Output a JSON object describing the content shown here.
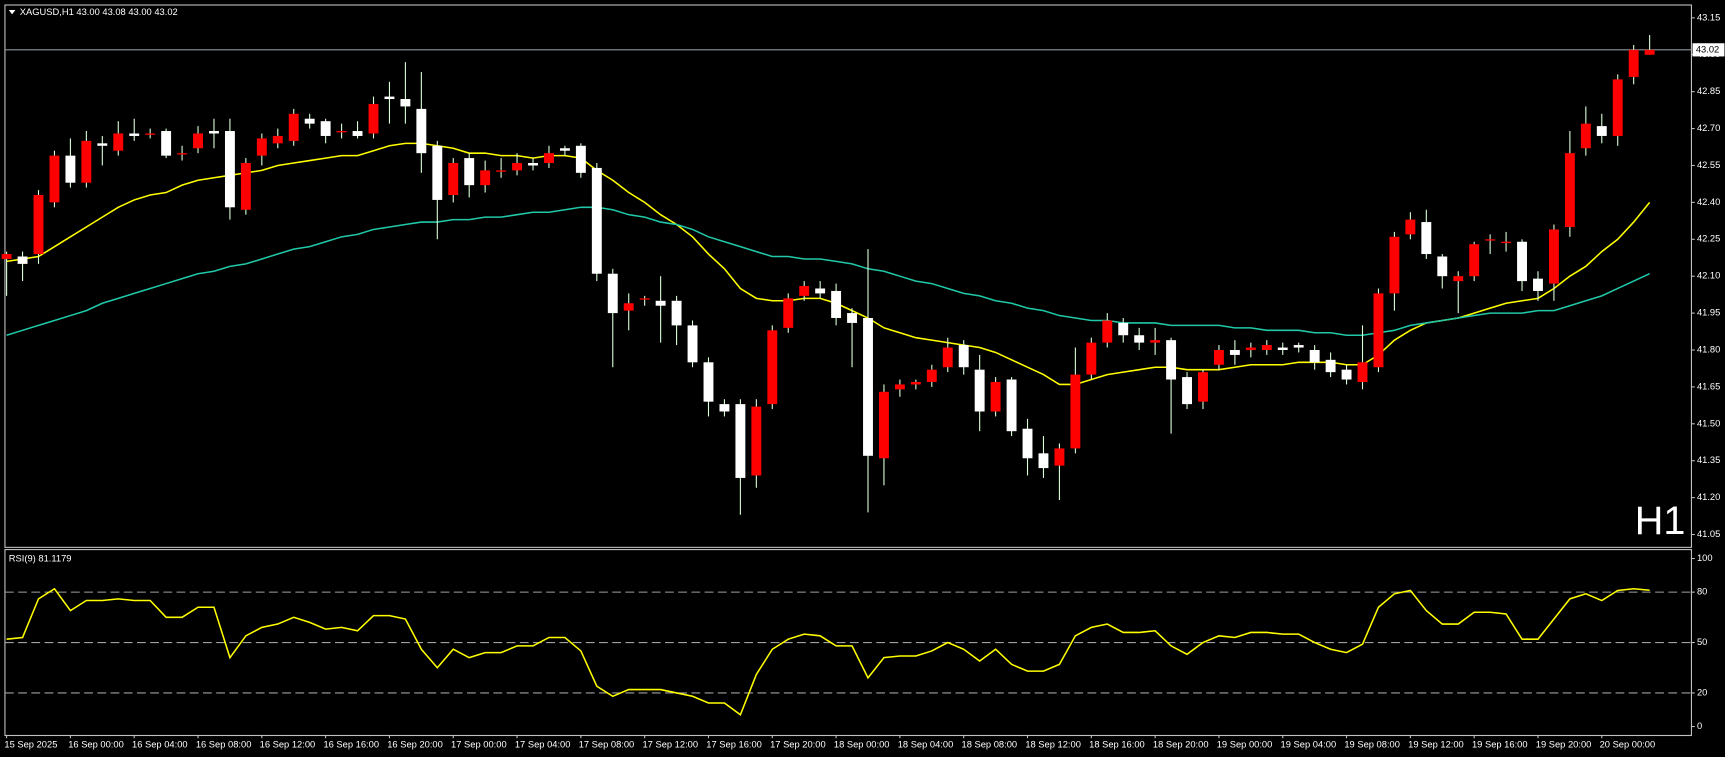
{
  "chart_data": [
    {
      "type": "candlestick",
      "title": "XAGUSD,H1  43.00 43.08 43.00 43.02",
      "annotation": "H1",
      "annotation_color": "#e00000",
      "up_color": "#ff0000",
      "down_color": "#ffffff",
      "wick_color": "#d8ffd8",
      "open": [
        42.17,
        42.18,
        42.19,
        42.4,
        42.59,
        42.48,
        42.64,
        42.61,
        42.68,
        42.68,
        42.69,
        42.6,
        42.62,
        42.69,
        42.69,
        42.37,
        42.59,
        42.64,
        42.65,
        42.74,
        42.73,
        42.69,
        42.69,
        42.68,
        42.83,
        42.82,
        42.78,
        42.63,
        42.43,
        42.58,
        42.47,
        42.53,
        42.53,
        42.56,
        42.56,
        42.62,
        42.63,
        42.54,
        42.11,
        41.96,
        42.01,
        42.0,
        42.0,
        41.9,
        41.75,
        41.58,
        41.58,
        41.29,
        41.58,
        41.89,
        42.02,
        42.05,
        42.04,
        41.95,
        41.93,
        41.36,
        41.64,
        41.66,
        41.67,
        41.73,
        41.82,
        41.72,
        41.55,
        41.68,
        41.48,
        41.38,
        41.33,
        41.4,
        41.7,
        41.83,
        41.91,
        41.86,
        41.83,
        41.84,
        41.69,
        41.59,
        41.74,
        41.8,
        41.8,
        41.8,
        41.81,
        41.82,
        41.8,
        41.76,
        41.72,
        41.67,
        41.73,
        42.03,
        42.27,
        42.32,
        42.18,
        42.08,
        42.1,
        42.25,
        42.24,
        42.24,
        42.09,
        42.07,
        42.3,
        42.62,
        42.71,
        42.67,
        42.91,
        43.0
      ],
      "high": [
        42.2,
        42.2,
        42.45,
        42.61,
        42.66,
        42.69,
        42.67,
        42.73,
        42.74,
        42.7,
        42.7,
        42.63,
        42.71,
        42.74,
        42.74,
        42.58,
        42.68,
        42.7,
        42.78,
        42.76,
        42.74,
        42.72,
        42.73,
        42.83,
        42.89,
        42.97,
        42.93,
        42.65,
        42.58,
        42.6,
        42.57,
        42.58,
        42.6,
        42.58,
        42.63,
        42.63,
        42.64,
        42.56,
        42.13,
        42.03,
        42.02,
        42.1,
        42.02,
        41.92,
        41.77,
        41.6,
        41.6,
        41.6,
        41.9,
        42.03,
        42.08,
        42.08,
        42.07,
        41.97,
        42.21,
        41.66,
        41.68,
        41.68,
        41.74,
        41.85,
        41.84,
        41.78,
        41.69,
        41.69,
        41.52,
        41.45,
        41.42,
        41.81,
        41.85,
        41.95,
        41.93,
        41.89,
        41.89,
        41.85,
        41.71,
        41.72,
        41.82,
        41.84,
        41.83,
        41.84,
        41.83,
        41.83,
        41.82,
        41.79,
        41.74,
        41.9,
        42.05,
        42.28,
        42.36,
        42.37,
        42.19,
        42.12,
        42.24,
        42.27,
        42.28,
        42.25,
        42.12,
        42.31,
        42.69,
        42.79,
        42.76,
        42.92,
        43.04,
        43.08
      ],
      "low": [
        42.02,
        42.08,
        42.15,
        42.38,
        42.46,
        42.46,
        42.55,
        42.59,
        42.65,
        42.66,
        42.58,
        42.57,
        42.6,
        42.62,
        42.33,
        42.35,
        42.55,
        42.62,
        42.63,
        42.7,
        42.64,
        42.66,
        42.66,
        42.66,
        42.72,
        42.72,
        42.52,
        42.25,
        42.4,
        42.42,
        42.44,
        42.5,
        42.51,
        42.53,
        42.54,
        42.59,
        42.5,
        42.08,
        41.73,
        41.88,
        41.98,
        41.83,
        41.82,
        41.73,
        41.53,
        41.53,
        41.13,
        41.24,
        41.56,
        41.87,
        42.0,
        42.01,
        41.9,
        41.73,
        41.14,
        41.25,
        41.61,
        41.64,
        41.65,
        41.71,
        41.7,
        41.47,
        41.53,
        41.45,
        41.29,
        41.28,
        41.19,
        41.38,
        41.68,
        41.81,
        41.83,
        41.8,
        41.78,
        41.46,
        41.56,
        41.56,
        41.72,
        41.74,
        41.77,
        41.78,
        41.78,
        41.79,
        41.72,
        41.69,
        41.66,
        41.64,
        41.71,
        41.96,
        42.25,
        42.17,
        42.05,
        41.95,
        42.08,
        42.19,
        42.2,
        42.04,
        42.0,
        42.0,
        42.26,
        42.59,
        42.64,
        42.63,
        42.88,
        43.0
      ],
      "close": [
        42.19,
        42.15,
        42.43,
        42.59,
        42.48,
        42.65,
        42.63,
        42.68,
        42.67,
        42.68,
        42.59,
        42.6,
        42.68,
        42.68,
        42.38,
        42.56,
        42.66,
        42.67,
        42.76,
        42.72,
        42.67,
        42.69,
        42.67,
        42.8,
        42.82,
        42.79,
        42.6,
        42.41,
        42.56,
        42.47,
        42.53,
        42.53,
        42.56,
        42.55,
        42.6,
        42.61,
        42.52,
        42.11,
        41.95,
        41.99,
        42.01,
        41.98,
        41.9,
        41.75,
        41.59,
        41.55,
        41.28,
        41.57,
        41.88,
        42.01,
        42.06,
        42.03,
        41.93,
        41.91,
        41.37,
        41.63,
        41.66,
        41.67,
        41.72,
        41.81,
        41.73,
        41.55,
        41.67,
        41.47,
        41.36,
        41.32,
        41.4,
        41.7,
        41.83,
        41.92,
        41.86,
        41.83,
        41.84,
        41.68,
        41.58,
        41.71,
        41.8,
        41.78,
        41.81,
        41.82,
        41.8,
        41.81,
        41.75,
        41.71,
        41.68,
        41.75,
        42.03,
        42.26,
        42.33,
        42.19,
        42.1,
        42.1,
        42.23,
        42.25,
        42.24,
        42.08,
        42.04,
        42.29,
        42.6,
        42.72,
        42.67,
        42.9,
        43.02,
        43.02
      ],
      "series": [
        {
          "color": "#ffff00",
          "values": [
            42.16,
            42.17,
            42.18,
            42.22,
            42.26,
            42.3,
            42.34,
            42.38,
            42.41,
            42.43,
            42.44,
            42.47,
            42.49,
            42.5,
            42.51,
            42.52,
            42.53,
            42.55,
            42.56,
            42.57,
            42.58,
            42.59,
            42.59,
            42.61,
            42.63,
            42.64,
            42.64,
            42.63,
            42.62,
            42.6,
            42.6,
            42.59,
            42.59,
            42.58,
            42.59,
            42.59,
            42.58,
            42.53,
            42.49,
            42.44,
            42.4,
            42.35,
            42.31,
            42.26,
            42.19,
            42.13,
            42.05,
            42.01,
            42.0,
            42.0,
            42.01,
            42.01,
            41.99,
            41.96,
            41.93,
            41.89,
            41.87,
            41.85,
            41.84,
            41.83,
            41.82,
            41.81,
            41.79,
            41.76,
            41.73,
            41.7,
            41.66,
            41.66,
            41.68,
            41.7,
            41.71,
            41.72,
            41.73,
            41.73,
            41.72,
            41.72,
            41.72,
            41.73,
            41.74,
            41.74,
            41.74,
            41.75,
            41.75,
            41.75,
            41.74,
            41.74,
            41.78,
            41.84,
            41.88,
            41.91,
            41.92,
            41.93,
            41.95,
            41.97,
            41.99,
            42.0,
            42.01,
            42.05,
            42.1,
            42.14,
            42.2,
            42.25,
            42.32,
            42.4
          ]
        },
        {
          "color": "#20c8a8",
          "values": [
            41.86,
            41.88,
            41.9,
            41.92,
            41.94,
            41.96,
            41.99,
            42.01,
            42.03,
            42.05,
            42.07,
            42.09,
            42.11,
            42.12,
            42.14,
            42.15,
            42.17,
            42.19,
            42.21,
            42.22,
            42.24,
            42.26,
            42.27,
            42.29,
            42.3,
            42.31,
            42.32,
            42.32,
            42.33,
            42.33,
            42.34,
            42.34,
            42.35,
            42.36,
            42.36,
            42.37,
            42.38,
            42.38,
            42.37,
            42.35,
            42.34,
            42.32,
            42.31,
            42.29,
            42.26,
            42.24,
            42.22,
            42.2,
            42.18,
            42.18,
            42.17,
            42.17,
            42.16,
            42.15,
            42.13,
            42.12,
            42.1,
            42.08,
            42.07,
            42.05,
            42.03,
            42.02,
            42.0,
            41.99,
            41.97,
            41.96,
            41.94,
            41.93,
            41.92,
            41.92,
            41.91,
            41.91,
            41.91,
            41.9,
            41.9,
            41.9,
            41.9,
            41.89,
            41.89,
            41.88,
            41.88,
            41.88,
            41.87,
            41.87,
            41.86,
            41.86,
            41.87,
            41.88,
            41.9,
            41.91,
            41.92,
            41.93,
            41.94,
            41.95,
            41.95,
            41.95,
            41.96,
            41.96,
            41.98,
            42.0,
            42.02,
            42.05,
            42.08,
            42.11
          ]
        }
      ],
      "current_price": 43.02,
      "price_line_color": "#8c96a0",
      "ylim": [
        41.0,
        43.2
      ],
      "yticks": [
        41.05,
        {
          "value": 41.2,
          "label": "41.20"
        },
        41.35,
        {
          "value": 41.5,
          "label": "41.50"
        },
        41.65,
        {
          "value": 41.8,
          "label": "41.80"
        },
        41.95,
        {
          "value": 42.1,
          "label": "42.10"
        },
        42.25,
        {
          "value": 42.4,
          "label": "42.40"
        },
        42.55,
        {
          "value": 42.7,
          "label": "42.70"
        },
        42.85,
        {
          "value": 43.0,
          "label": "43.00"
        },
        43.15
      ]
    },
    {
      "type": "line",
      "title": "RSI(9) 81.1179",
      "color": "#ffff00",
      "values": [
        52,
        53,
        76,
        82,
        69,
        75,
        75,
        76,
        75,
        75,
        65,
        65,
        71,
        71,
        41,
        54,
        59,
        61,
        65,
        62,
        58,
        59,
        57,
        66,
        66,
        64,
        46,
        35,
        46,
        41,
        44,
        44,
        48,
        48,
        53,
        53,
        45,
        24,
        18,
        22,
        22,
        22,
        20,
        18,
        14,
        14,
        7,
        31,
        46,
        52,
        55,
        54,
        48,
        48,
        29,
        41,
        42,
        42,
        45,
        50,
        46,
        39,
        46,
        37,
        33,
        33,
        37,
        54,
        59,
        61,
        56,
        56,
        57,
        48,
        43,
        50,
        54,
        53,
        56,
        56,
        55,
        55,
        50,
        46,
        44,
        49,
        71,
        79,
        81,
        69,
        61,
        61,
        68,
        68,
        67,
        52,
        52,
        64,
        76,
        79,
        75,
        81,
        82,
        81.1179
      ],
      "categories": [
        "15 Sep 2025",
        null,
        null,
        null,
        "16 Sep 00:00",
        null,
        null,
        null,
        "16 Sep 04:00",
        null,
        null,
        null,
        "16 Sep 08:00",
        null,
        null,
        null,
        "16 Sep 12:00",
        null,
        null,
        null,
        "16 Sep 16:00",
        null,
        null,
        null,
        "16 Sep 20:00",
        null,
        null,
        null,
        "17 Sep 00:00",
        null,
        null,
        null,
        "17 Sep 04:00",
        null,
        null,
        null,
        "17 Sep 08:00",
        null,
        null,
        null,
        "17 Sep 12:00",
        null,
        null,
        null,
        "17 Sep 16:00",
        null,
        null,
        null,
        "17 Sep 20:00",
        null,
        null,
        null,
        "18 Sep 00:00",
        null,
        null,
        null,
        "18 Sep 04:00",
        null,
        null,
        null,
        "18 Sep 08:00",
        null,
        null,
        null,
        "18 Sep 12:00",
        null,
        null,
        null,
        "18 Sep 16:00",
        null,
        null,
        null,
        "18 Sep 20:00",
        null,
        null,
        null,
        "19 Sep 00:00",
        null,
        null,
        null,
        "19 Sep 04:00",
        null,
        null,
        null,
        "19 Sep 08:00",
        null,
        null,
        null,
        "19 Sep 12:00",
        null,
        null,
        null,
        "19 Sep 16:00",
        null,
        null,
        null,
        "19 Sep 20:00",
        null,
        null,
        null,
        "20 Sep 00:00",
        null,
        null,
        null
      ],
      "ylim": [
        -5,
        105
      ],
      "yticks": [
        0,
        20,
        50,
        80,
        100
      ],
      "levels": [
        20,
        50,
        80
      ]
    }
  ]
}
